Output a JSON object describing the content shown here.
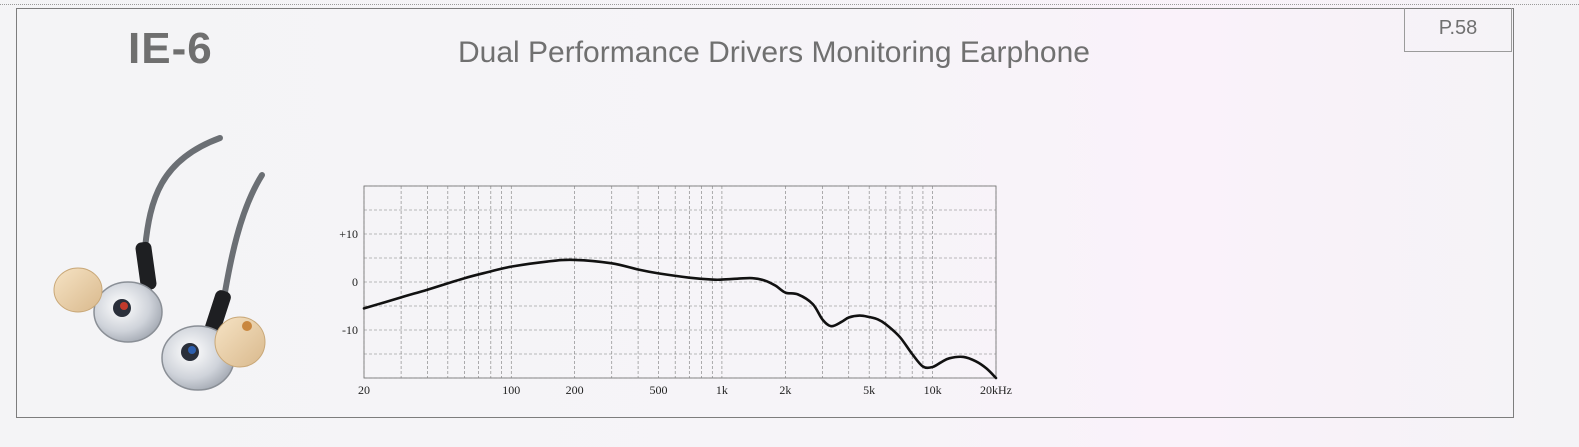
{
  "header": {
    "model": "IE-6",
    "title": "Dual Performance Drivers Monitoring Earphone",
    "page_label": "P.58"
  },
  "colors": {
    "frame": "#7d7d7d",
    "heading_gray": "#6f6f6f",
    "grid": "#7a7a7a",
    "curve": "#111111"
  },
  "image": {
    "subject": "clear-in-ear-monitor-earphones-with-foam-tips-icon"
  },
  "chart_data": {
    "type": "line",
    "title": "",
    "xlabel": "",
    "ylabel": "",
    "x_scale": "log",
    "xlim": [
      20,
      20000
    ],
    "ylim": [
      -20,
      20
    ],
    "grid": true,
    "x_ticks": [
      {
        "value": 20,
        "label": "20"
      },
      {
        "value": 100,
        "label": "100"
      },
      {
        "value": 200,
        "label": "200"
      },
      {
        "value": 500,
        "label": "500"
      },
      {
        "value": 1000,
        "label": "1k"
      },
      {
        "value": 2000,
        "label": "2k"
      },
      {
        "value": 5000,
        "label": "5k"
      },
      {
        "value": 10000,
        "label": "10k"
      },
      {
        "value": 20000,
        "label": "20kHz"
      }
    ],
    "y_ticks": [
      {
        "value": 10,
        "label": "+10"
      },
      {
        "value": 0,
        "label": "0"
      },
      {
        "value": -10,
        "label": "-10"
      }
    ],
    "series": [
      {
        "x": [
          20,
          30,
          40,
          60,
          80,
          100,
          150,
          200,
          300,
          400,
          500,
          700,
          900,
          1000,
          1200,
          1400,
          1600,
          1800,
          2000,
          2300,
          2700,
          3000,
          3300,
          3700,
          4000,
          4500,
          5000,
          5500,
          6000,
          7000,
          8000,
          9000,
          10000,
          11000,
          12000,
          14000,
          16000,
          18000,
          20000
        ],
        "y": [
          -5.5,
          -3.2,
          -1.6,
          0.8,
          2.2,
          3.2,
          4.3,
          4.6,
          3.9,
          2.6,
          1.8,
          0.9,
          0.5,
          0.5,
          0.7,
          0.8,
          0.3,
          -0.8,
          -2.2,
          -2.6,
          -4.6,
          -7.8,
          -9.2,
          -8.3,
          -7.4,
          -7.0,
          -7.3,
          -7.8,
          -8.8,
          -11.5,
          -15.0,
          -17.6,
          -17.7,
          -16.7,
          -15.9,
          -15.6,
          -16.5,
          -18.0,
          -20.0
        ]
      }
    ]
  }
}
